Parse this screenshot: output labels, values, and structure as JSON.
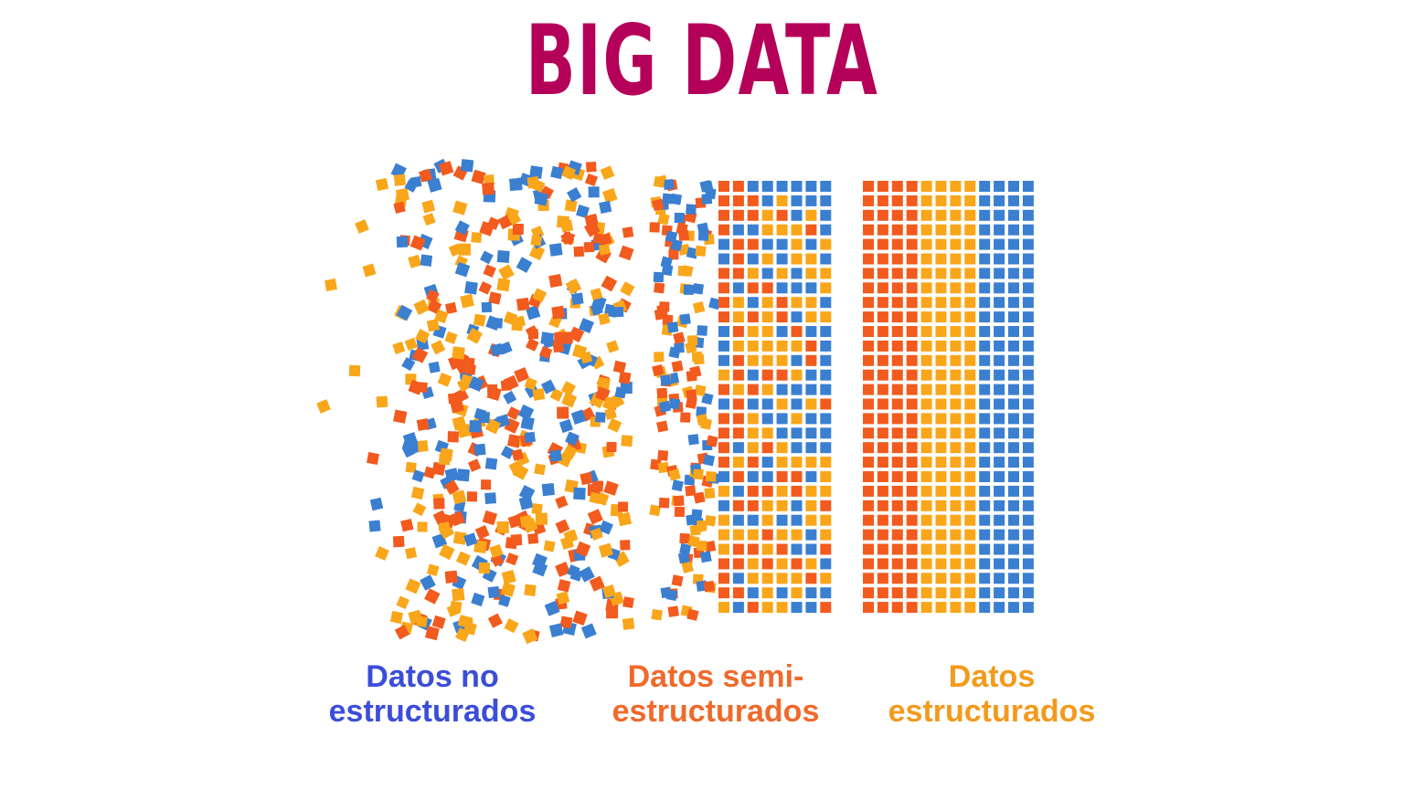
{
  "title": "BIG DATA",
  "colors": {
    "title": "#b5005a",
    "red": "#f25a1e",
    "orange": "#f9a61a",
    "blue": "#3b7fd1",
    "label_unstructured": "#3b4ed8",
    "label_semi": "#ef6a2b",
    "label_structured": "#f39a1c"
  },
  "labels": {
    "unstructured": {
      "line1": "Datos no",
      "line2": "estructurados"
    },
    "semi": {
      "line1": "Datos semi-",
      "line2": "estructurados"
    },
    "structured": {
      "line1": "Datos",
      "line2": "estructurados"
    }
  },
  "structured_bands": [
    "red",
    "orange",
    "blue"
  ]
}
